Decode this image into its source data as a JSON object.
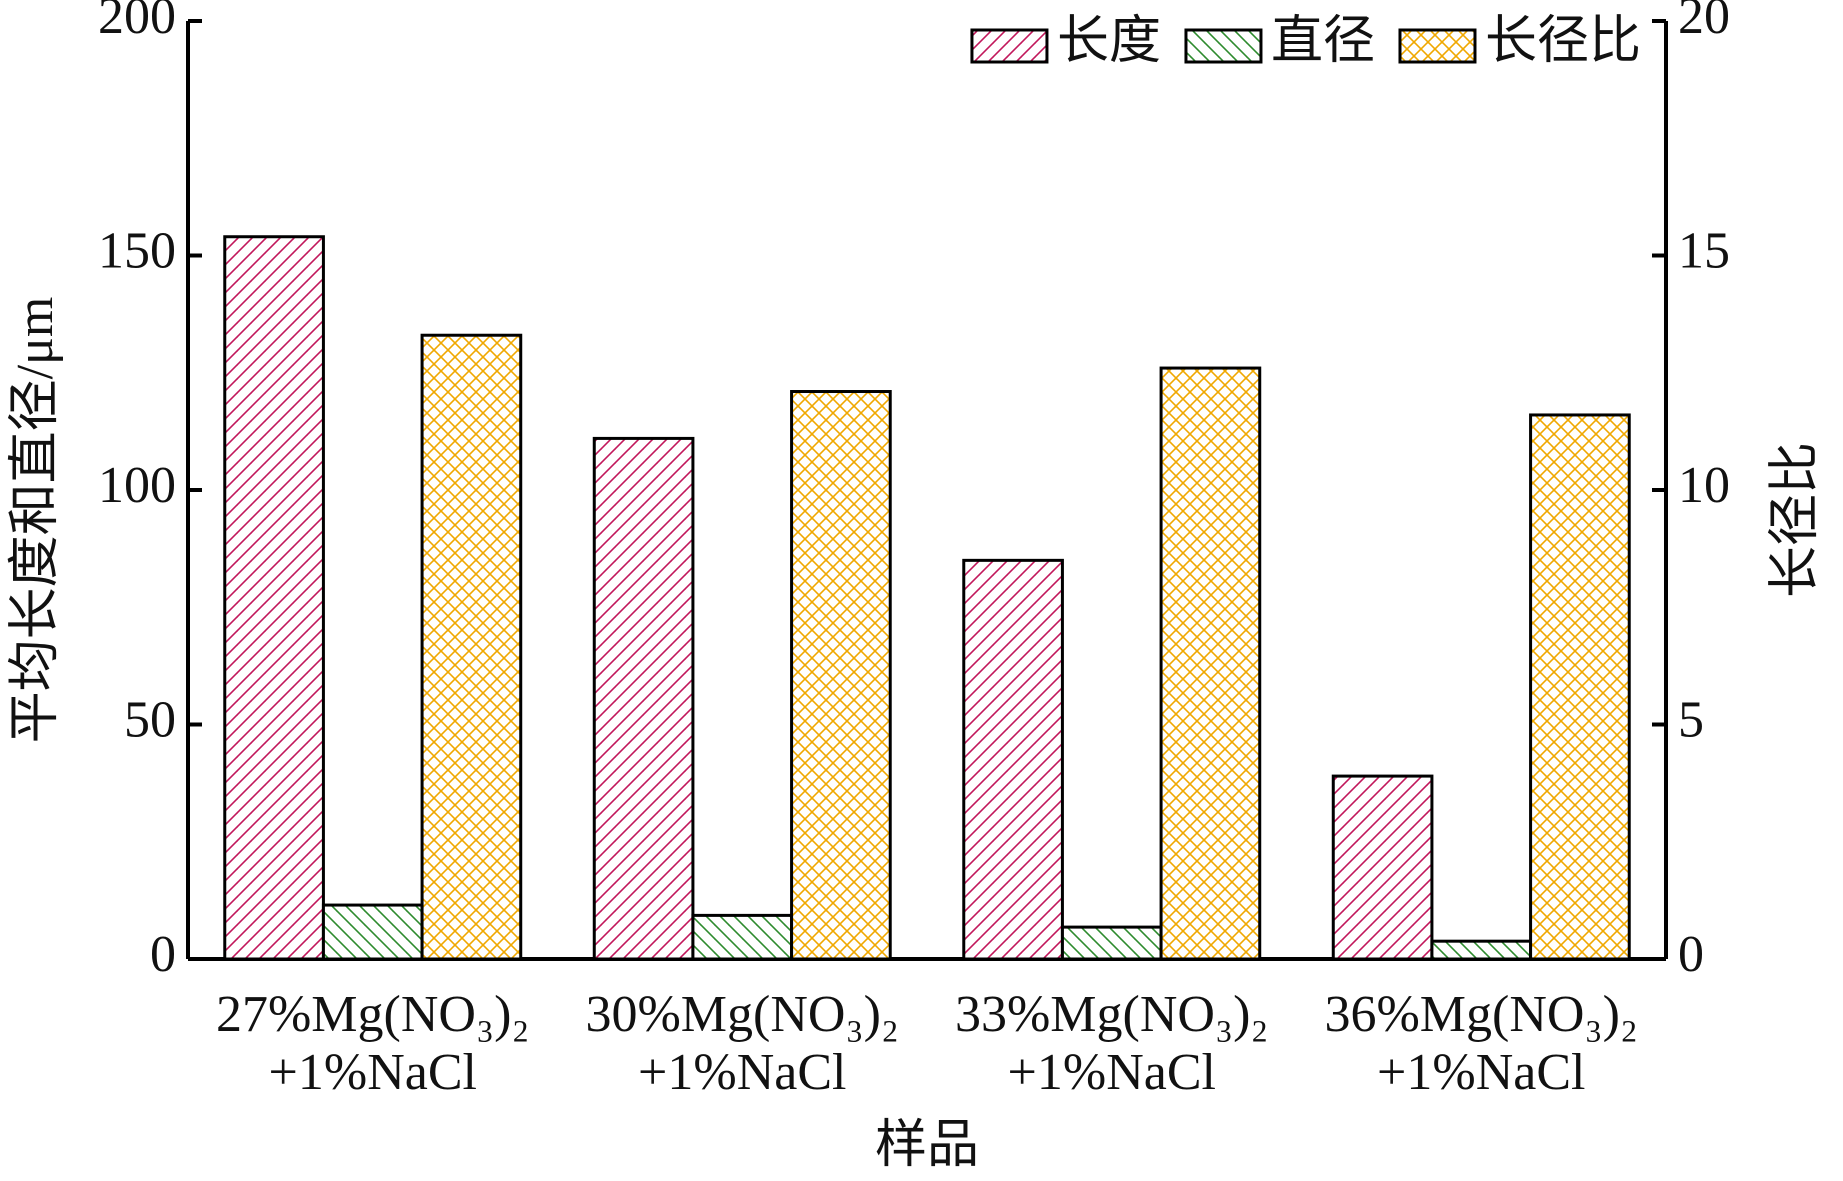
{
  "chart_data": {
    "type": "bar",
    "categories": [
      "27%Mg(NO₃)₂\n+1%NaCl",
      "30%Mg(NO₃)₂\n+1%NaCl",
      "33%Mg(NO₃)₂\n+1%NaCl",
      "36%Mg(NO₃)₂\n+1%NaCl"
    ],
    "series": [
      {
        "name": "长度",
        "color": "#c2185b",
        "values": [
          154,
          111,
          85,
          39
        ]
      },
      {
        "name": "直径",
        "color": "#2e8b2e",
        "values": [
          11.5,
          9.3,
          6.8,
          3.8
        ]
      },
      {
        "name": "长径比",
        "color": "#f0a800",
        "axis": "y2",
        "values": [
          13.3,
          12.1,
          12.6,
          11.6
        ]
      }
    ],
    "ylim": [
      0,
      200
    ],
    "yticks": [
      0,
      50,
      100,
      150,
      200
    ],
    "y2lim": [
      0,
      20
    ],
    "y2ticks": [
      0,
      5,
      10,
      15,
      20
    ],
    "y_label": "平均长度和直径/μm",
    "y2_label": "长径比",
    "x_label": "样品",
    "legend": "top-right"
  }
}
